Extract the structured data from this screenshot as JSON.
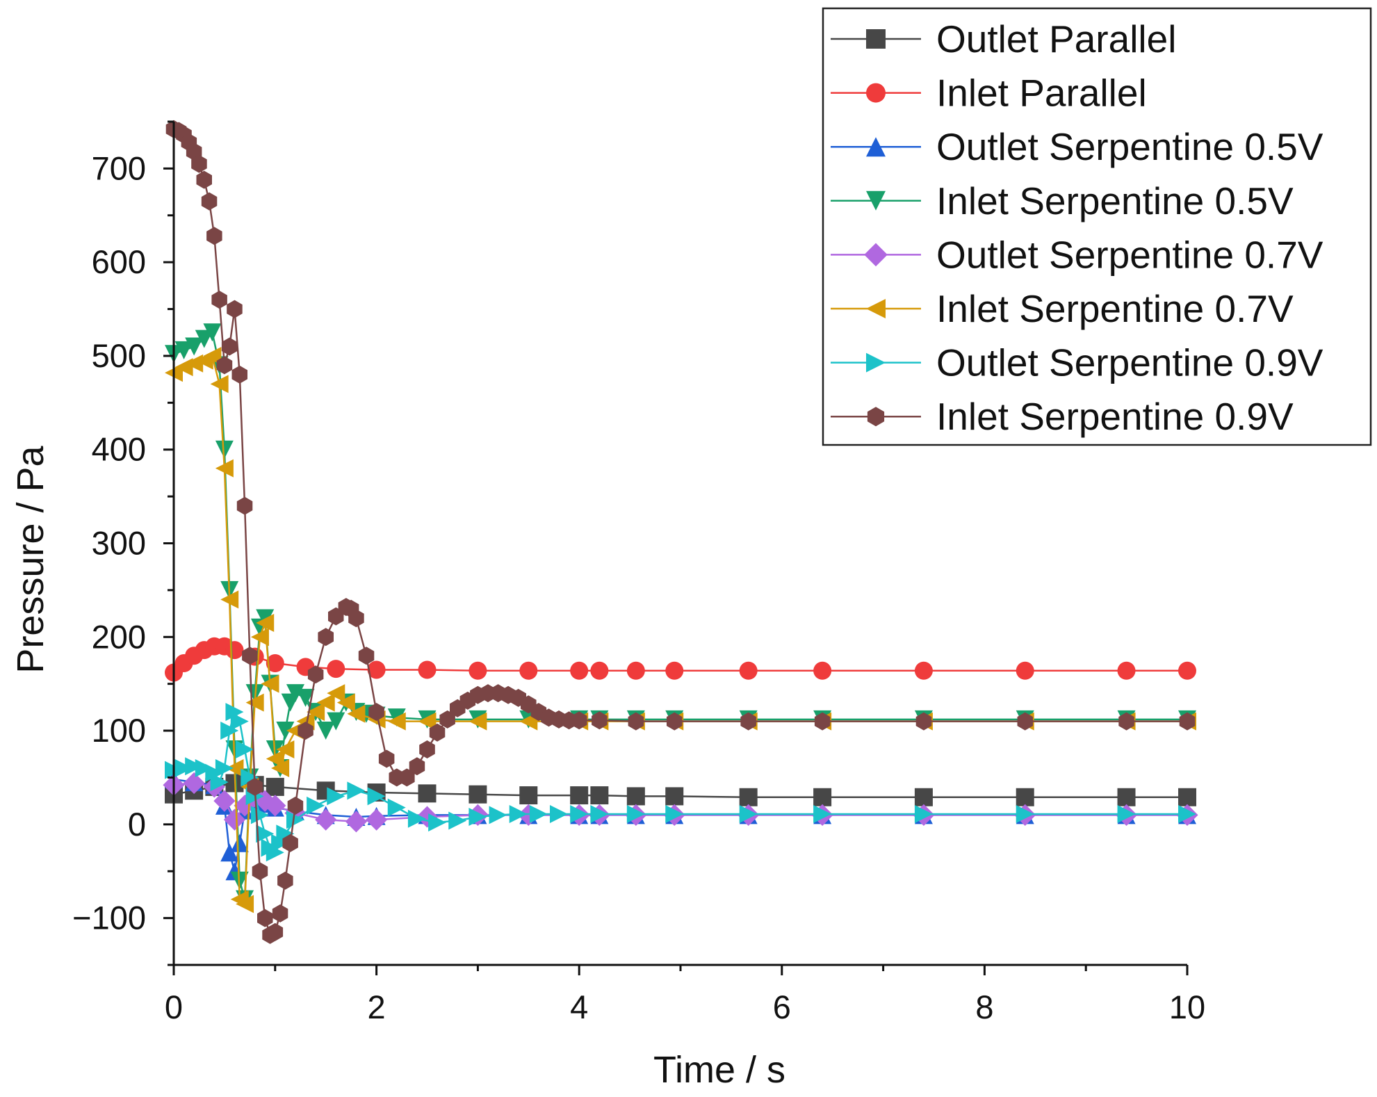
{
  "chart_data": {
    "type": "line",
    "title": "",
    "xlabel": "Time / s",
    "ylabel": "Pressure / Pa",
    "xlim": [
      0,
      10
    ],
    "ylim": [
      -150,
      750
    ],
    "xticks": [
      0,
      2,
      4,
      6,
      8,
      10
    ],
    "xtick_labels": [
      "0",
      "2",
      "4",
      "6",
      "8",
      "10"
    ],
    "yticks": [
      -100,
      0,
      100,
      200,
      300,
      400,
      500,
      600,
      700
    ],
    "ytick_labels": [
      "−100",
      "0",
      "100",
      "200",
      "300",
      "400",
      "500",
      "600",
      "700"
    ],
    "grid": false,
    "legend_position": "top-right",
    "series": [
      {
        "name": "Outlet Parallel",
        "color": "#474747",
        "marker": "square",
        "x": [
          0,
          0.2,
          0.4,
          0.6,
          0.8,
          1.0,
          1.5,
          2.0,
          2.5,
          3.0,
          3.5,
          4.0,
          4.2,
          4.56,
          4.94,
          5.67,
          6.4,
          7.4,
          8.4,
          9.4,
          10
        ],
        "y": [
          32,
          36,
          40,
          44,
          42,
          40,
          36,
          34,
          33,
          32,
          31,
          31,
          31,
          30,
          30,
          29,
          29,
          29,
          29,
          29,
          29
        ]
      },
      {
        "name": "Inlet Parallel",
        "color": "#ef3b3b",
        "marker": "circle",
        "x": [
          0,
          0.1,
          0.2,
          0.3,
          0.4,
          0.5,
          0.6,
          0.8,
          1.0,
          1.3,
          1.6,
          2.0,
          2.5,
          3.0,
          3.5,
          4.0,
          4.2,
          4.56,
          4.94,
          5.67,
          6.4,
          7.4,
          8.4,
          9.4,
          10
        ],
        "y": [
          162,
          172,
          180,
          186,
          190,
          190,
          186,
          179,
          172,
          168,
          166,
          165,
          165,
          164,
          164,
          164,
          164,
          164,
          164,
          164,
          164,
          164,
          164,
          164,
          164
        ]
      },
      {
        "name": "Outlet Serpentine 0.5V",
        "color": "#1f5fd6",
        "marker": "triangle-up",
        "x": [
          0,
          0.2,
          0.4,
          0.5,
          0.55,
          0.6,
          0.65,
          0.7,
          0.8,
          0.9,
          1.0,
          1.2,
          1.5,
          1.8,
          2.0,
          2.5,
          3.0,
          3.5,
          4.0,
          4.2,
          4.56,
          4.94,
          5.67,
          6.4,
          7.4,
          8.4,
          9.4,
          10
        ],
        "y": [
          48,
          45,
          42,
          20,
          -30,
          -50,
          -20,
          15,
          25,
          22,
          18,
          14,
          10,
          8,
          9,
          10,
          10,
          10,
          10,
          10,
          10,
          10,
          10,
          10,
          10,
          10,
          10,
          10
        ]
      },
      {
        "name": "Inlet Serpentine 0.5V",
        "color": "#18a06a",
        "marker": "triangle-down",
        "x": [
          0,
          0.1,
          0.2,
          0.3,
          0.38,
          0.45,
          0.5,
          0.55,
          0.6,
          0.65,
          0.7,
          0.75,
          0.8,
          0.85,
          0.9,
          0.95,
          1.0,
          1.05,
          1.1,
          1.15,
          1.2,
          1.3,
          1.4,
          1.5,
          1.6,
          1.7,
          1.8,
          1.9,
          2.0,
          2.2,
          2.5,
          3.0,
          3.5,
          4.0,
          4.2,
          4.56,
          4.94,
          5.67,
          6.4,
          7.4,
          8.4,
          9.4,
          10
        ],
        "y": [
          502,
          506,
          510,
          518,
          525,
          490,
          400,
          250,
          80,
          -60,
          -80,
          50,
          140,
          210,
          220,
          150,
          80,
          60,
          100,
          130,
          140,
          135,
          120,
          100,
          110,
          130,
          120,
          118,
          116,
          114,
          112,
          112,
          112,
          112,
          112,
          112,
          112,
          112,
          112,
          112,
          112,
          112,
          112
        ]
      },
      {
        "name": "Outlet Serpentine 0.7V",
        "color": "#b068e0",
        "marker": "diamond",
        "x": [
          0,
          0.2,
          0.4,
          0.5,
          0.6,
          0.7,
          0.8,
          0.9,
          1.0,
          1.2,
          1.5,
          1.8,
          2.0,
          2.5,
          3.0,
          3.5,
          4.0,
          4.2,
          4.56,
          4.94,
          5.67,
          6.4,
          7.4,
          8.4,
          9.4,
          10
        ],
        "y": [
          42,
          44,
          40,
          25,
          5,
          20,
          30,
          25,
          20,
          12,
          5,
          3,
          5,
          8,
          10,
          10,
          10,
          10,
          10,
          10,
          10,
          10,
          10,
          10,
          10,
          10
        ]
      },
      {
        "name": "Inlet Serpentine 0.7V",
        "color": "#d69a0a",
        "marker": "triangle-left",
        "x": [
          0,
          0.1,
          0.2,
          0.3,
          0.38,
          0.45,
          0.5,
          0.55,
          0.6,
          0.65,
          0.7,
          0.75,
          0.8,
          0.85,
          0.9,
          0.95,
          1.0,
          1.05,
          1.1,
          1.2,
          1.3,
          1.4,
          1.5,
          1.6,
          1.7,
          1.8,
          2.0,
          2.2,
          2.5,
          3.0,
          3.5,
          4.0,
          4.2,
          4.56,
          4.94,
          5.67,
          6.4,
          7.4,
          8.4,
          9.4,
          10
        ],
        "y": [
          482,
          488,
          492,
          495,
          500,
          470,
          380,
          240,
          60,
          -80,
          -85,
          40,
          130,
          200,
          215,
          150,
          70,
          60,
          80,
          100,
          110,
          120,
          130,
          140,
          130,
          118,
          112,
          110,
          110,
          110,
          110,
          110,
          110,
          110,
          110,
          110,
          110,
          110,
          110,
          110,
          110
        ]
      },
      {
        "name": "Outlet Serpentine 0.9V",
        "color": "#1cc2c9",
        "marker": "triangle-right",
        "x": [
          0,
          0.1,
          0.2,
          0.3,
          0.4,
          0.45,
          0.5,
          0.55,
          0.6,
          0.65,
          0.7,
          0.75,
          0.8,
          0.85,
          0.9,
          0.95,
          1.0,
          1.05,
          1.1,
          1.2,
          1.4,
          1.6,
          1.8,
          2.0,
          2.2,
          2.4,
          2.6,
          2.8,
          3.0,
          3.2,
          3.4,
          3.6,
          3.8,
          4.0,
          4.2,
          4.56,
          4.94,
          5.67,
          6.4,
          7.4,
          8.4,
          9.4,
          10
        ],
        "y": [
          58,
          60,
          62,
          60,
          55,
          45,
          60,
          100,
          120,
          110,
          80,
          50,
          30,
          10,
          -10,
          -25,
          -30,
          -20,
          -10,
          5,
          20,
          30,
          36,
          30,
          18,
          6,
          2,
          4,
          8,
          10,
          11,
          11,
          11,
          11,
          11,
          11,
          11,
          11,
          11,
          11,
          11,
          11,
          11
        ]
      },
      {
        "name": "Inlet Serpentine 0.9V",
        "color": "#7a4545",
        "marker": "hexagon",
        "x": [
          0,
          0.05,
          0.1,
          0.15,
          0.2,
          0.25,
          0.3,
          0.35,
          0.4,
          0.45,
          0.5,
          0.55,
          0.6,
          0.65,
          0.7,
          0.75,
          0.8,
          0.85,
          0.9,
          0.95,
          1.0,
          1.05,
          1.1,
          1.15,
          1.2,
          1.3,
          1.4,
          1.5,
          1.6,
          1.7,
          1.75,
          1.8,
          1.9,
          2.0,
          2.1,
          2.2,
          2.3,
          2.4,
          2.5,
          2.6,
          2.7,
          2.8,
          2.9,
          3.0,
          3.1,
          3.2,
          3.3,
          3.4,
          3.5,
          3.6,
          3.7,
          3.8,
          3.9,
          4.0,
          4.2,
          4.56,
          4.94,
          5.67,
          6.4,
          7.4,
          8.4,
          9.4,
          10
        ],
        "y": [
          742,
          740,
          736,
          728,
          718,
          705,
          688,
          665,
          628,
          560,
          490,
          510,
          550,
          480,
          340,
          180,
          40,
          -50,
          -100,
          -118,
          -115,
          -95,
          -60,
          -20,
          20,
          100,
          160,
          200,
          222,
          232,
          230,
          220,
          180,
          120,
          70,
          50,
          50,
          62,
          80,
          98,
          112,
          124,
          132,
          138,
          140,
          140,
          138,
          135,
          128,
          120,
          114,
          112,
          111,
          111,
          111,
          110,
          110,
          110,
          110,
          110,
          110,
          110,
          110
        ]
      }
    ]
  }
}
